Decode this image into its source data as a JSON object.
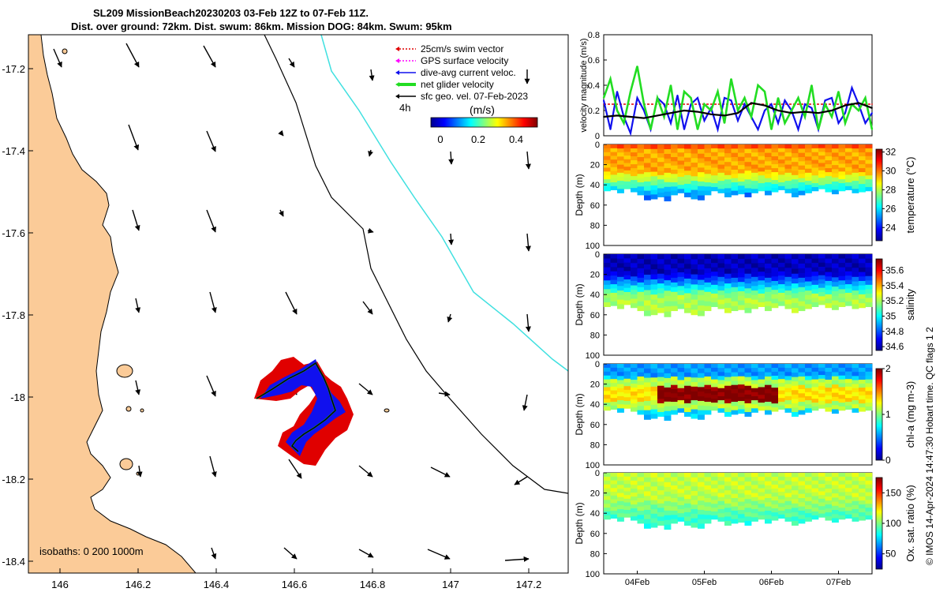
{
  "title": {
    "line1": "SL209 MissionBeach20230203 03-Feb 12Z to 07-Feb 11Z.",
    "line2": "Dist. over ground: 72km. Dist. swum: 86km. Mission DOG: 84km. Swum: 95km"
  },
  "footnote": "© IMOS 14-Apr-2024 14:47:30 Hobart time. QC flags 1  2",
  "colors": {
    "land": "#fbcb98",
    "coast": "#000000",
    "deep_isobath": "#40e0e0",
    "swim_vector": "#e00000",
    "gps_vector": "#ff00ff",
    "current": "#1010ee",
    "net_velocity": "#22dd22",
    "geostrophic": "#000000"
  },
  "map": {
    "lon_ticks": [
      "146",
      "146.2",
      "146.4",
      "146.6",
      "146.8",
      "147",
      "147.2"
    ],
    "lat_ticks": [
      "-17.2",
      "-17.4",
      "-17.6",
      "-17.8",
      "-18",
      "-18.2",
      "-18.4"
    ],
    "isobath_note": "isobaths: 0   200 1000m",
    "legend": {
      "items": [
        {
          "label": "25cm/s swim vector",
          "key": "swim_vector",
          "style": "dotted"
        },
        {
          "label": "GPS surface velocity",
          "key": "gps_vector",
          "style": "dotted"
        },
        {
          "label": "dive-avg current veloc.",
          "key": "current",
          "style": "solid"
        },
        {
          "label": "net glider velocity",
          "key": "net_velocity",
          "style": "thick"
        },
        {
          "label": "sfc geo. vel. 07-Feb-2023",
          "key": "geostrophic",
          "style": "solid"
        }
      ],
      "step_label": "4h",
      "colorbar_title": "(m/s)",
      "colorbar_ticks": [
        "0",
        "0.2",
        "0.4"
      ]
    }
  },
  "chart_data": [
    {
      "type": "line",
      "title": "Glider velocity magnitude",
      "xlabel": "",
      "ylabel": "velocity magnitude (m/s)",
      "ylim": [
        0,
        0.8
      ],
      "ytick_labels": [
        "0",
        "0.2",
        "0.4",
        "0.6",
        "0.8"
      ],
      "x_range_days": [
        0,
        4
      ],
      "series": [
        {
          "name": "swim vector",
          "key": "swim_vector",
          "x": [
            0,
            4
          ],
          "values": [
            0.25,
            0.25
          ]
        },
        {
          "name": "dive-avg current veloc.",
          "key": "current",
          "x": [
            0,
            0.1,
            0.2,
            0.3,
            0.4,
            0.5,
            0.6,
            0.7,
            0.8,
            0.9,
            1.0,
            1.1,
            1.2,
            1.3,
            1.4,
            1.5,
            1.6,
            1.7,
            1.8,
            1.9,
            2.0,
            2.1,
            2.2,
            2.3,
            2.4,
            2.5,
            2.6,
            2.7,
            2.8,
            2.9,
            3.0,
            3.1,
            3.2,
            3.3,
            3.4,
            3.5,
            3.6,
            3.7,
            3.8,
            3.9,
            4.0
          ],
          "values": [
            0.28,
            0.05,
            0.35,
            0.15,
            0.02,
            0.3,
            0.2,
            0.05,
            0.3,
            0.25,
            0.1,
            0.32,
            0.05,
            0.25,
            0.3,
            0.12,
            0.22,
            0.05,
            0.3,
            0.28,
            0.12,
            0.25,
            0.15,
            0.05,
            0.2,
            0.25,
            0.1,
            0.28,
            0.2,
            0.05,
            0.25,
            0.22,
            0.05,
            0.28,
            0.3,
            0.1,
            0.18,
            0.38,
            0.25,
            0.1,
            0.18
          ]
        },
        {
          "name": "net glider velocity",
          "key": "net_velocity",
          "x": [
            0,
            0.1,
            0.2,
            0.3,
            0.4,
            0.5,
            0.6,
            0.7,
            0.8,
            0.9,
            1.0,
            1.1,
            1.2,
            1.3,
            1.4,
            1.5,
            1.6,
            1.7,
            1.8,
            1.9,
            2.0,
            2.1,
            2.2,
            2.3,
            2.4,
            2.5,
            2.6,
            2.7,
            2.8,
            2.9,
            3.0,
            3.1,
            3.2,
            3.3,
            3.4,
            3.5,
            3.6,
            3.7,
            3.8,
            3.9,
            4.0
          ],
          "values": [
            0.3,
            0.45,
            0.2,
            0.1,
            0.35,
            0.55,
            0.25,
            0.05,
            0.3,
            0.15,
            0.4,
            0.05,
            0.35,
            0.3,
            0.05,
            0.25,
            0.2,
            0.35,
            0.1,
            0.45,
            0.2,
            0.3,
            0.15,
            0.4,
            0.35,
            0.05,
            0.3,
            0.1,
            0.2,
            0.3,
            0.15,
            0.4,
            0.05,
            0.25,
            0.15,
            0.35,
            0.1,
            0.25,
            0.2,
            0.3,
            0.05
          ]
        },
        {
          "name": "sfc geo. vel.",
          "key": "geostrophic",
          "x": [
            0,
            0.2,
            0.4,
            0.6,
            0.8,
            1.0,
            1.2,
            1.4,
            1.6,
            1.8,
            2.0,
            2.2,
            2.4,
            2.6,
            2.8,
            3.0,
            3.2,
            3.4,
            3.6,
            3.8,
            4.0
          ],
          "values": [
            0.15,
            0.16,
            0.15,
            0.14,
            0.16,
            0.18,
            0.2,
            0.19,
            0.17,
            0.16,
            0.18,
            0.26,
            0.24,
            0.2,
            0.18,
            0.19,
            0.18,
            0.2,
            0.24,
            0.26,
            0.22
          ]
        }
      ]
    },
    {
      "type": "heatmap",
      "variable": "temperature",
      "ylabel": "Depth (m)",
      "ylim": [
        100,
        0
      ],
      "ytick_labels": [
        "0",
        "20",
        "40",
        "60",
        "80",
        "100"
      ],
      "colorbar_label": "temperature (°C)",
      "clim": [
        22.6,
        32.3
      ],
      "colorbar_ticks": [
        "32",
        "30",
        "28",
        "26",
        "24"
      ],
      "upper_value": 29.5,
      "lower_value": 25.0,
      "transition_depth_m": 38
    },
    {
      "type": "heatmap",
      "variable": "salinity",
      "ylabel": "Depth (m)",
      "ylim": [
        100,
        0
      ],
      "ytick_labels": [
        "0",
        "20",
        "40",
        "60",
        "80",
        "100"
      ],
      "colorbar_label": "salinity",
      "clim": [
        34.55,
        35.75
      ],
      "colorbar_ticks": [
        "35.6",
        "35.4",
        "35.2",
        "35",
        "34.8",
        "34.6"
      ],
      "upper_value": 34.62,
      "lower_value": 35.2,
      "transition_depth_m": 30
    },
    {
      "type": "heatmap",
      "variable": "chl-a",
      "ylabel": "Depth (m)",
      "ylim": [
        100,
        0
      ],
      "ytick_labels": [
        "0",
        "20",
        "40",
        "60",
        "80",
        "100"
      ],
      "colorbar_label": "chl-a (mg m-3)",
      "clim": [
        0,
        2
      ],
      "colorbar_ticks": [
        "2",
        "1",
        "0"
      ],
      "upper_value": 0.55,
      "lower_value": 0.9,
      "max_depth_m": 30
    },
    {
      "type": "heatmap",
      "variable": "oxygen saturation",
      "ylabel": "Depth (m)",
      "ylim": [
        100,
        0
      ],
      "ytick_labels": [
        "0",
        "20",
        "40",
        "60",
        "80",
        "100"
      ],
      "colorbar_label": "Ox. sat. ratio (%)",
      "clim": [
        25,
        175
      ],
      "colorbar_ticks": [
        "150",
        "100",
        "50"
      ],
      "upper_value": 110,
      "lower_value": 88,
      "transition_depth_m": 35
    }
  ],
  "time_axis": {
    "tick_labels": [
      "04Feb",
      "05Feb",
      "06Feb",
      "07Feb"
    ],
    "tick_days": [
      0.5,
      1.5,
      2.5,
      3.5
    ]
  }
}
